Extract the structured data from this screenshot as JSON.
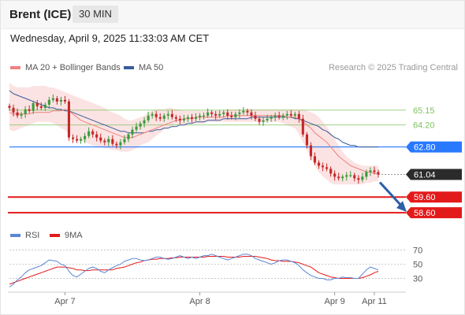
{
  "header": {
    "instrument": "Brent (ICE)",
    "timeframe": "30 MIN",
    "datetime": "Wednesday, April 9, 2025 11:33:03 AM CET"
  },
  "legend": {
    "ma20": "MA 20 + Bollinger Bands",
    "ma50": "MA 50",
    "credit": "Research © 2025 Trading Central",
    "rsi": "RSI",
    "rsi_ma": "9MA"
  },
  "colors": {
    "ma20": "#f08080",
    "bands": "#fadada",
    "ma50": "#3a5a9a",
    "up": "#3a9a3a",
    "down": "#c62828",
    "pivot": "#2979ff",
    "support": "#e31a1a",
    "resistance": "#7dc35c",
    "current": "#2b2b2b",
    "arrow": "#2d5fa8",
    "rsi": "#5b86d6",
    "rsi_ma": "#e31a1a"
  },
  "chart_data": [
    {
      "type": "candlestick",
      "x_ticks": [
        "Apr 7",
        "Apr 8",
        "Apr 9",
        "Apr 11"
      ],
      "ylim": [
        58.0,
        66.4
      ],
      "levels": [
        {
          "value": 65.15,
          "label": "65.15",
          "kind": "resistance"
        },
        {
          "value": 64.2,
          "label": "64.20",
          "kind": "resistance"
        },
        {
          "value": 62.8,
          "label": "62.80",
          "kind": "pivot"
        },
        {
          "value": 61.04,
          "label": "61.04",
          "kind": "current"
        },
        {
          "value": 59.6,
          "label": "59.60",
          "kind": "support"
        },
        {
          "value": 58.6,
          "label": "58.60",
          "kind": "support"
        }
      ],
      "close": [
        65.3,
        65.0,
        64.8,
        64.9,
        65.2,
        65.1,
        65.6,
        65.4,
        65.3,
        65.5,
        65.8,
        65.9,
        65.7,
        65.8,
        65.7,
        63.4,
        63.3,
        63.2,
        63.3,
        63.5,
        63.8,
        63.6,
        63.4,
        63.2,
        63.1,
        63.3,
        63.0,
        62.9,
        63.1,
        63.3,
        63.6,
        63.9,
        64.1,
        64.3,
        64.5,
        64.8,
        64.9,
        64.7,
        64.6,
        64.8,
        64.9,
        64.7,
        64.6,
        64.5,
        64.6,
        64.7,
        64.6,
        64.7,
        64.8,
        64.8,
        65.0,
        64.9,
        64.8,
        64.9,
        65.0,
        64.8,
        64.7,
        64.9,
        65.0,
        65.1,
        65.0,
        64.8,
        64.6,
        64.4,
        64.5,
        64.6,
        64.7,
        64.8,
        64.7,
        64.8,
        64.9,
        64.8,
        64.9,
        64.6,
        63.6,
        62.9,
        62.2,
        61.8,
        61.6,
        61.5,
        61.4,
        61.1,
        60.9,
        60.8,
        60.9,
        61.0,
        61.0,
        60.8,
        60.7,
        60.9,
        61.2,
        61.3,
        61.2,
        61.04
      ],
      "ma20": [
        65.0,
        64.9,
        64.9,
        64.9,
        64.9,
        64.9,
        65.0,
        65.0,
        65.0,
        65.0,
        65.0,
        65.1,
        65.1,
        65.1,
        65.2,
        65.1,
        64.9,
        64.7,
        64.5,
        64.4,
        64.3,
        64.2,
        64.1,
        64.0,
        63.9,
        63.8,
        63.7,
        63.6,
        63.5,
        63.4,
        63.4,
        63.4,
        63.5,
        63.6,
        63.7,
        63.8,
        63.9,
        64.0,
        64.1,
        64.2,
        64.3,
        64.4,
        64.5,
        64.5,
        64.6,
        64.6,
        64.6,
        64.7,
        64.7,
        64.7,
        64.7,
        64.7,
        64.7,
        64.7,
        64.7,
        64.8,
        64.8,
        64.8,
        64.8,
        64.8,
        64.8,
        64.8,
        64.8,
        64.8,
        64.8,
        64.8,
        64.8,
        64.8,
        64.8,
        64.8,
        64.7,
        64.7,
        64.7,
        64.6,
        64.4,
        64.2,
        64.0,
        63.7,
        63.5,
        63.3,
        63.1,
        62.8,
        62.5,
        62.2,
        62.0,
        61.8,
        61.6,
        61.5,
        61.4,
        61.3,
        61.2,
        61.2,
        61.1,
        61.1
      ],
      "upper": [
        66.9,
        66.7,
        66.6,
        66.6,
        66.6,
        66.6,
        66.7,
        66.7,
        66.7,
        66.7,
        66.6,
        66.6,
        66.5,
        66.4,
        66.3,
        66.2,
        66.1,
        66.0,
        65.9,
        65.8,
        65.7,
        65.6,
        65.5,
        65.4,
        65.3,
        65.1,
        65.0,
        64.9,
        64.8,
        64.6,
        64.5,
        64.5,
        64.6,
        64.7,
        64.8,
        65.0,
        65.1,
        65.2,
        65.2,
        65.2,
        65.3,
        65.3,
        65.2,
        65.2,
        65.1,
        65.1,
        65.1,
        65.1,
        65.1,
        65.1,
        65.1,
        65.1,
        65.1,
        65.1,
        65.1,
        65.2,
        65.2,
        65.2,
        65.2,
        65.2,
        65.2,
        65.2,
        65.2,
        65.2,
        65.2,
        65.2,
        65.2,
        65.2,
        65.2,
        65.2,
        65.2,
        65.2,
        65.2,
        65.2,
        65.2,
        65.1,
        65.0,
        64.9,
        64.7,
        64.4,
        64.1,
        63.7,
        63.3,
        62.9,
        62.5,
        62.2,
        62.0,
        61.8,
        61.7,
        61.6,
        61.6,
        61.6,
        61.6,
        61.6
      ],
      "lower": [
        63.9,
        63.8,
        63.9,
        64.0,
        64.1,
        64.2,
        64.3,
        64.4,
        64.4,
        64.4,
        64.4,
        64.3,
        64.2,
        64.0,
        63.9,
        63.6,
        63.4,
        63.3,
        63.2,
        63.1,
        63.0,
        62.9,
        62.8,
        62.8,
        62.7,
        62.7,
        62.6,
        62.6,
        62.5,
        62.5,
        62.5,
        62.6,
        62.7,
        62.9,
        63.0,
        63.1,
        63.3,
        63.5,
        63.7,
        63.9,
        64.0,
        64.1,
        64.2,
        64.2,
        64.2,
        64.3,
        64.3,
        64.3,
        64.3,
        64.3,
        64.4,
        64.4,
        64.4,
        64.4,
        64.4,
        64.4,
        64.4,
        64.4,
        64.4,
        64.4,
        64.4,
        64.4,
        64.4,
        64.4,
        64.4,
        64.4,
        64.4,
        64.4,
        64.4,
        64.3,
        64.2,
        64.1,
        64.0,
        63.6,
        63.1,
        62.6,
        62.1,
        61.6,
        61.2,
        60.9,
        60.7,
        60.5,
        60.4,
        60.4,
        60.4,
        60.4,
        60.4,
        60.4,
        60.4,
        60.4,
        60.5,
        60.5,
        60.6,
        60.6
      ],
      "ma50": [
        66.4,
        66.2,
        66.1,
        66.0,
        65.9,
        65.8,
        65.7,
        65.6,
        65.5,
        65.4,
        65.3,
        65.3,
        65.2,
        65.2,
        65.1,
        65.1,
        65.0,
        64.9,
        64.8,
        64.7,
        64.6,
        64.5,
        64.4,
        64.3,
        64.2,
        64.1,
        64.0,
        63.9,
        63.8,
        63.8,
        63.7,
        63.7,
        63.7,
        63.7,
        63.7,
        63.8,
        63.8,
        63.9,
        63.9,
        64.0,
        64.0,
        64.1,
        64.1,
        64.2,
        64.2,
        64.3,
        64.3,
        64.4,
        64.4,
        64.4,
        64.5,
        64.5,
        64.5,
        64.5,
        64.6,
        64.6,
        64.6,
        64.6,
        64.6,
        64.6,
        64.6,
        64.7,
        64.7,
        64.7,
        64.7,
        64.7,
        64.7,
        64.7,
        64.7,
        64.7,
        64.7,
        64.7,
        64.6,
        64.6,
        64.5,
        64.4,
        64.3,
        64.2,
        64.1,
        63.9,
        63.8,
        63.6,
        63.4,
        63.3,
        63.1,
        63.0,
        62.9,
        62.9,
        62.8,
        62.8,
        62.8,
        62.8,
        62.8,
        62.8
      ]
    },
    {
      "type": "line",
      "title": "RSI",
      "ylim": [
        14,
        76
      ],
      "y_ticks": [
        70,
        50,
        30
      ],
      "series": [
        {
          "name": "RSI",
          "values": [
            18,
            22,
            28,
            32,
            38,
            42,
            44,
            46,
            48,
            52,
            56,
            55,
            54,
            50,
            48,
            40,
            34,
            32,
            36,
            40,
            44,
            46,
            44,
            40,
            38,
            42,
            45,
            48,
            50,
            54,
            56,
            58,
            58,
            56,
            55,
            56,
            58,
            60,
            60,
            58,
            57,
            58,
            60,
            62,
            60,
            58,
            60,
            58,
            60,
            62,
            62,
            64,
            62,
            60,
            58,
            56,
            58,
            60,
            62,
            64,
            64,
            62,
            58,
            56,
            54,
            52,
            50,
            52,
            55,
            56,
            56,
            54,
            52,
            48,
            42,
            38,
            34,
            32,
            30,
            30,
            28,
            28,
            30,
            30,
            32,
            31,
            31,
            30,
            30,
            36,
            42,
            46,
            44,
            42
          ]
        },
        {
          "name": "9MA",
          "values": [
            22,
            24,
            26,
            28,
            30,
            32,
            34,
            36,
            38,
            40,
            42,
            44,
            46,
            46,
            46,
            45,
            44,
            42,
            42,
            41,
            41,
            42,
            42,
            42,
            42,
            42,
            42,
            44,
            45,
            46,
            48,
            50,
            52,
            53,
            55,
            56,
            57,
            57,
            58,
            58,
            58,
            59,
            59,
            60,
            60,
            60,
            60,
            60,
            60,
            60,
            61,
            61,
            61,
            61,
            61,
            60,
            60,
            60,
            60,
            61,
            61,
            61,
            61,
            60,
            59,
            58,
            56,
            55,
            55,
            54,
            54,
            54,
            53,
            52,
            50,
            48,
            46,
            42,
            38,
            36,
            34,
            32,
            31,
            30,
            30,
            30,
            30,
            30,
            30,
            31,
            33,
            35,
            38,
            40
          ]
        }
      ]
    }
  ]
}
